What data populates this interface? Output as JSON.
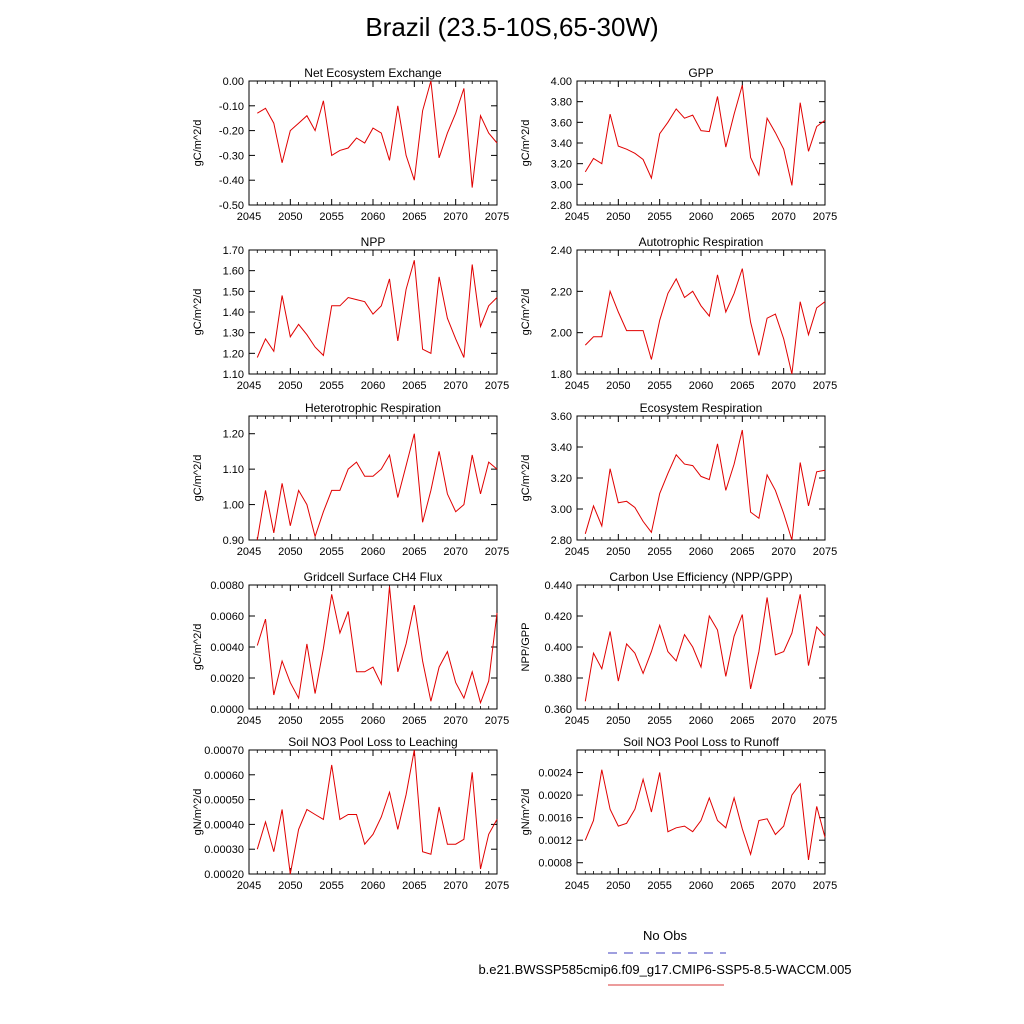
{
  "title": "Brazil (23.5-10S,65-30W)",
  "legend": {
    "entries": [
      {
        "label": "No Obs",
        "color": "#6666cc",
        "style": "dashed"
      },
      {
        "label": "b.e21.BWSSP585cmip6.f09_g17.CMIP6-SSP5-8.5-WACCM.005",
        "color": "#e06060",
        "style": "solid"
      }
    ]
  },
  "chart_data": [
    {
      "type": "line",
      "title": "Net Ecosystem Exchange",
      "ylabel": "gC/m^2/d",
      "xlim": [
        2045,
        2075
      ],
      "ylim": [
        -0.5,
        0.0
      ],
      "xticks": [
        2045,
        2050,
        2055,
        2060,
        2065,
        2070,
        2075
      ],
      "yticks": [
        "0.00",
        "-0.10",
        "-0.20",
        "-0.30",
        "-0.40",
        "-0.50"
      ],
      "series": [
        {
          "color": "#e00000",
          "x": [
            2046,
            2047,
            2048,
            2049,
            2050,
            2051,
            2052,
            2053,
            2054,
            2055,
            2056,
            2057,
            2058,
            2059,
            2060,
            2061,
            2062,
            2063,
            2064,
            2065,
            2066,
            2067,
            2068,
            2069,
            2070,
            2071,
            2072,
            2073,
            2074,
            2075
          ],
          "values": [
            -0.13,
            -0.11,
            -0.17,
            -0.33,
            -0.2,
            -0.17,
            -0.14,
            -0.2,
            -0.08,
            -0.3,
            -0.28,
            -0.27,
            -0.23,
            -0.25,
            -0.19,
            -0.21,
            -0.32,
            -0.1,
            -0.3,
            -0.4,
            -0.12,
            0.0,
            -0.31,
            -0.21,
            -0.13,
            -0.03,
            -0.43,
            -0.14,
            -0.21,
            -0.25
          ]
        }
      ]
    },
    {
      "type": "line",
      "title": "GPP",
      "ylabel": "gC/m^2/d",
      "xlim": [
        2045,
        2075
      ],
      "ylim": [
        2.8,
        4.0
      ],
      "xticks": [
        2045,
        2050,
        2055,
        2060,
        2065,
        2070,
        2075
      ],
      "yticks": [
        "4.00",
        "3.80",
        "3.60",
        "3.40",
        "3.20",
        "3.00",
        "2.80"
      ],
      "series": [
        {
          "color": "#e00000",
          "x": [
            2046,
            2047,
            2048,
            2049,
            2050,
            2051,
            2052,
            2053,
            2054,
            2055,
            2056,
            2057,
            2058,
            2059,
            2060,
            2061,
            2062,
            2063,
            2064,
            2065,
            2066,
            2067,
            2068,
            2069,
            2070,
            2071,
            2072,
            2073,
            2074,
            2075
          ],
          "values": [
            3.12,
            3.25,
            3.2,
            3.68,
            3.37,
            3.34,
            3.3,
            3.24,
            3.06,
            3.49,
            3.6,
            3.73,
            3.64,
            3.67,
            3.52,
            3.51,
            3.85,
            3.36,
            3.68,
            3.96,
            3.26,
            3.09,
            3.64,
            3.5,
            3.34,
            2.99,
            3.79,
            3.32,
            3.56,
            3.62
          ]
        }
      ]
    },
    {
      "type": "line",
      "title": "NPP",
      "ylabel": "gC/m^2/d",
      "xlim": [
        2045,
        2075
      ],
      "ylim": [
        1.1,
        1.7
      ],
      "xticks": [
        2045,
        2050,
        2055,
        2060,
        2065,
        2070,
        2075
      ],
      "yticks": [
        "1.70",
        "1.60",
        "1.50",
        "1.40",
        "1.30",
        "1.20",
        "1.10"
      ],
      "series": [
        {
          "color": "#e00000",
          "x": [
            2046,
            2047,
            2048,
            2049,
            2050,
            2051,
            2052,
            2053,
            2054,
            2055,
            2056,
            2057,
            2058,
            2059,
            2060,
            2061,
            2062,
            2063,
            2064,
            2065,
            2066,
            2067,
            2068,
            2069,
            2070,
            2071,
            2072,
            2073,
            2074,
            2075
          ],
          "values": [
            1.18,
            1.27,
            1.21,
            1.48,
            1.28,
            1.34,
            1.29,
            1.23,
            1.19,
            1.43,
            1.43,
            1.47,
            1.46,
            1.45,
            1.39,
            1.43,
            1.56,
            1.26,
            1.51,
            1.65,
            1.22,
            1.2,
            1.57,
            1.37,
            1.27,
            1.18,
            1.63,
            1.33,
            1.43,
            1.47
          ]
        }
      ]
    },
    {
      "type": "line",
      "title": "Autotrophic Respiration",
      "ylabel": "gC/m^2/d",
      "xlim": [
        2045,
        2075
      ],
      "ylim": [
        1.8,
        2.4
      ],
      "xticks": [
        2045,
        2050,
        2055,
        2060,
        2065,
        2070,
        2075
      ],
      "yticks": [
        "2.40",
        "2.20",
        "2.00",
        "1.80"
      ],
      "series": [
        {
          "color": "#e00000",
          "x": [
            2046,
            2047,
            2048,
            2049,
            2050,
            2051,
            2052,
            2053,
            2054,
            2055,
            2056,
            2057,
            2058,
            2059,
            2060,
            2061,
            2062,
            2063,
            2064,
            2065,
            2066,
            2067,
            2068,
            2069,
            2070,
            2071,
            2072,
            2073,
            2074,
            2075
          ],
          "values": [
            1.94,
            1.98,
            1.98,
            2.2,
            2.1,
            2.01,
            2.01,
            2.01,
            1.87,
            2.06,
            2.19,
            2.26,
            2.17,
            2.2,
            2.13,
            2.08,
            2.28,
            2.1,
            2.19,
            2.31,
            2.05,
            1.89,
            2.07,
            2.09,
            1.97,
            1.8,
            2.15,
            1.99,
            2.12,
            2.15
          ]
        }
      ]
    },
    {
      "type": "line",
      "title": "Heterotrophic Respiration",
      "ylabel": "gC/m^2/d",
      "xlim": [
        2045,
        2075
      ],
      "ylim": [
        0.9,
        1.25
      ],
      "xticks": [
        2045,
        2050,
        2055,
        2060,
        2065,
        2070,
        2075
      ],
      "yticks": [
        "1.20",
        "1.10",
        "1.00",
        "0.90"
      ],
      "yticks_values": [
        1.2,
        1.1,
        1.0,
        0.9
      ],
      "series": [
        {
          "color": "#e00000",
          "x": [
            2046,
            2047,
            2048,
            2049,
            2050,
            2051,
            2052,
            2053,
            2054,
            2055,
            2056,
            2057,
            2058,
            2059,
            2060,
            2061,
            2062,
            2063,
            2064,
            2065,
            2066,
            2067,
            2068,
            2069,
            2070,
            2071,
            2072,
            2073,
            2074,
            2075
          ],
          "values": [
            0.9,
            1.04,
            0.92,
            1.06,
            0.94,
            1.04,
            1.0,
            0.91,
            0.98,
            1.04,
            1.04,
            1.1,
            1.12,
            1.08,
            1.08,
            1.1,
            1.14,
            1.02,
            1.11,
            1.2,
            0.95,
            1.04,
            1.15,
            1.03,
            0.98,
            1.0,
            1.14,
            1.03,
            1.12,
            1.1
          ]
        }
      ]
    },
    {
      "type": "line",
      "title": "Ecosystem Respiration",
      "ylabel": "gC/m^2/d",
      "xlim": [
        2045,
        2075
      ],
      "ylim": [
        2.8,
        3.6
      ],
      "xticks": [
        2045,
        2050,
        2055,
        2060,
        2065,
        2070,
        2075
      ],
      "yticks": [
        "3.60",
        "3.40",
        "3.20",
        "3.00",
        "2.80"
      ],
      "series": [
        {
          "color": "#e00000",
          "x": [
            2046,
            2047,
            2048,
            2049,
            2050,
            2051,
            2052,
            2053,
            2054,
            2055,
            2056,
            2057,
            2058,
            2059,
            2060,
            2061,
            2062,
            2063,
            2064,
            2065,
            2066,
            2067,
            2068,
            2069,
            2070,
            2071,
            2072,
            2073,
            2074,
            2075
          ],
          "values": [
            2.84,
            3.02,
            2.89,
            3.26,
            3.04,
            3.05,
            3.01,
            2.92,
            2.85,
            3.1,
            3.23,
            3.35,
            3.29,
            3.28,
            3.21,
            3.19,
            3.42,
            3.12,
            3.29,
            3.51,
            2.98,
            2.94,
            3.22,
            3.12,
            2.97,
            2.8,
            3.3,
            3.02,
            3.24,
            3.25
          ]
        }
      ]
    },
    {
      "type": "line",
      "title": "Gridcell Surface CH4 Flux",
      "ylabel": "gC/m^2/d",
      "xlim": [
        2045,
        2075
      ],
      "ylim": [
        0.0,
        0.008
      ],
      "xticks": [
        2045,
        2050,
        2055,
        2060,
        2065,
        2070,
        2075
      ],
      "yticks": [
        "0.0080",
        "0.0060",
        "0.0040",
        "0.0020",
        "0.0000"
      ],
      "series": [
        {
          "color": "#e00000",
          "x": [
            2046,
            2047,
            2048,
            2049,
            2050,
            2051,
            2052,
            2053,
            2054,
            2055,
            2056,
            2057,
            2058,
            2059,
            2060,
            2061,
            2062,
            2063,
            2064,
            2065,
            2066,
            2067,
            2068,
            2069,
            2070,
            2071,
            2072,
            2073,
            2074,
            2075
          ],
          "values": [
            0.0041,
            0.0058,
            0.0009,
            0.0031,
            0.0017,
            0.0007,
            0.0042,
            0.001,
            0.0039,
            0.0074,
            0.0049,
            0.0063,
            0.0024,
            0.0024,
            0.0027,
            0.0016,
            0.0079,
            0.0024,
            0.0042,
            0.0067,
            0.0031,
            0.0005,
            0.0027,
            0.0037,
            0.0017,
            0.0007,
            0.0024,
            0.0004,
            0.0018,
            0.0062
          ]
        }
      ]
    },
    {
      "type": "line",
      "title": "Carbon Use Efficiency (NPP/GPP)",
      "ylabel": "NPP/GPP",
      "xlim": [
        2045,
        2075
      ],
      "ylim": [
        0.36,
        0.44
      ],
      "xticks": [
        2045,
        2050,
        2055,
        2060,
        2065,
        2070,
        2075
      ],
      "yticks": [
        "0.440",
        "0.420",
        "0.400",
        "0.380",
        "0.360"
      ],
      "series": [
        {
          "color": "#e00000",
          "x": [
            2046,
            2047,
            2048,
            2049,
            2050,
            2051,
            2052,
            2053,
            2054,
            2055,
            2056,
            2057,
            2058,
            2059,
            2060,
            2061,
            2062,
            2063,
            2064,
            2065,
            2066,
            2067,
            2068,
            2069,
            2070,
            2071,
            2072,
            2073,
            2074,
            2075
          ],
          "values": [
            0.365,
            0.396,
            0.386,
            0.41,
            0.378,
            0.402,
            0.396,
            0.383,
            0.397,
            0.414,
            0.397,
            0.391,
            0.408,
            0.4,
            0.387,
            0.42,
            0.411,
            0.381,
            0.407,
            0.421,
            0.373,
            0.397,
            0.432,
            0.395,
            0.397,
            0.409,
            0.434,
            0.388,
            0.413,
            0.407
          ]
        }
      ]
    },
    {
      "type": "line",
      "title": "Soil NO3 Pool Loss to Leaching",
      "ylabel": "gN/m^2/d",
      "xlim": [
        2045,
        2075
      ],
      "ylim": [
        0.0002,
        0.0007
      ],
      "xticks": [
        2045,
        2050,
        2055,
        2060,
        2065,
        2070,
        2075
      ],
      "yticks": [
        "0.00070",
        "0.00060",
        "0.00050",
        "0.00040",
        "0.00030",
        "0.00020"
      ],
      "series": [
        {
          "color": "#e00000",
          "x": [
            2046,
            2047,
            2048,
            2049,
            2050,
            2051,
            2052,
            2053,
            2054,
            2055,
            2056,
            2057,
            2058,
            2059,
            2060,
            2061,
            2062,
            2063,
            2064,
            2065,
            2066,
            2067,
            2068,
            2069,
            2070,
            2071,
            2072,
            2073,
            2074,
            2075
          ],
          "values": [
            0.0003,
            0.00041,
            0.00029,
            0.00046,
            0.0002,
            0.00038,
            0.00046,
            0.00044,
            0.00042,
            0.00064,
            0.00042,
            0.00044,
            0.00044,
            0.00032,
            0.00036,
            0.00043,
            0.00053,
            0.00038,
            0.00052,
            0.0007,
            0.00029,
            0.00028,
            0.00047,
            0.00032,
            0.00032,
            0.00034,
            0.00061,
            0.00022,
            0.00036,
            0.00042
          ]
        }
      ]
    },
    {
      "type": "line",
      "title": "Soil NO3 Pool Loss to Runoff",
      "ylabel": "gN/m^2/d",
      "xlim": [
        2045,
        2075
      ],
      "ylim": [
        0.0006,
        0.0028
      ],
      "xticks": [
        2045,
        2050,
        2055,
        2060,
        2065,
        2070,
        2075
      ],
      "yticks": [
        "0.0024",
        "0.0020",
        "0.0016",
        "0.0012",
        "0.0008"
      ],
      "yticks_values": [
        0.0024,
        0.002,
        0.0016,
        0.0012,
        0.0008
      ],
      "series": [
        {
          "color": "#e00000",
          "x": [
            2046,
            2047,
            2048,
            2049,
            2050,
            2051,
            2052,
            2053,
            2054,
            2055,
            2056,
            2057,
            2058,
            2059,
            2060,
            2061,
            2062,
            2063,
            2064,
            2065,
            2066,
            2067,
            2068,
            2069,
            2070,
            2071,
            2072,
            2073,
            2074,
            2075
          ],
          "values": [
            0.0012,
            0.00155,
            0.00245,
            0.00175,
            0.00145,
            0.0015,
            0.00175,
            0.00228,
            0.0017,
            0.0024,
            0.00135,
            0.00142,
            0.00145,
            0.00135,
            0.00155,
            0.00195,
            0.00155,
            0.00142,
            0.00195,
            0.0014,
            0.00095,
            0.00155,
            0.00158,
            0.0013,
            0.00145,
            0.002,
            0.0022,
            0.00085,
            0.0018,
            0.00125
          ]
        }
      ]
    }
  ]
}
